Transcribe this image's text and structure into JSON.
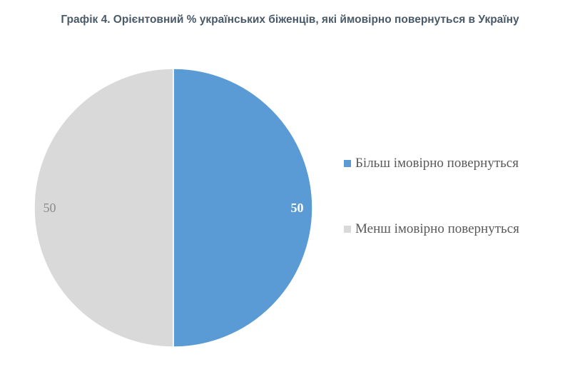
{
  "chart_data": {
    "type": "pie",
    "title": "Графік 4. Орієнтовний % українських біженців, які ймовірно повернуться в Україну",
    "categories": [
      "Більш імовірно повернуться",
      "Менш імовірно повернуться"
    ],
    "values": [
      50,
      50
    ],
    "data_labels": [
      "50",
      "50"
    ],
    "colors": [
      "#5b9bd5",
      "#d9d9d9"
    ],
    "label_colors": [
      "#ffffff",
      "#8c8c8c"
    ],
    "start_angle": "12 o'clock, clockwise",
    "legend_position": "right"
  }
}
